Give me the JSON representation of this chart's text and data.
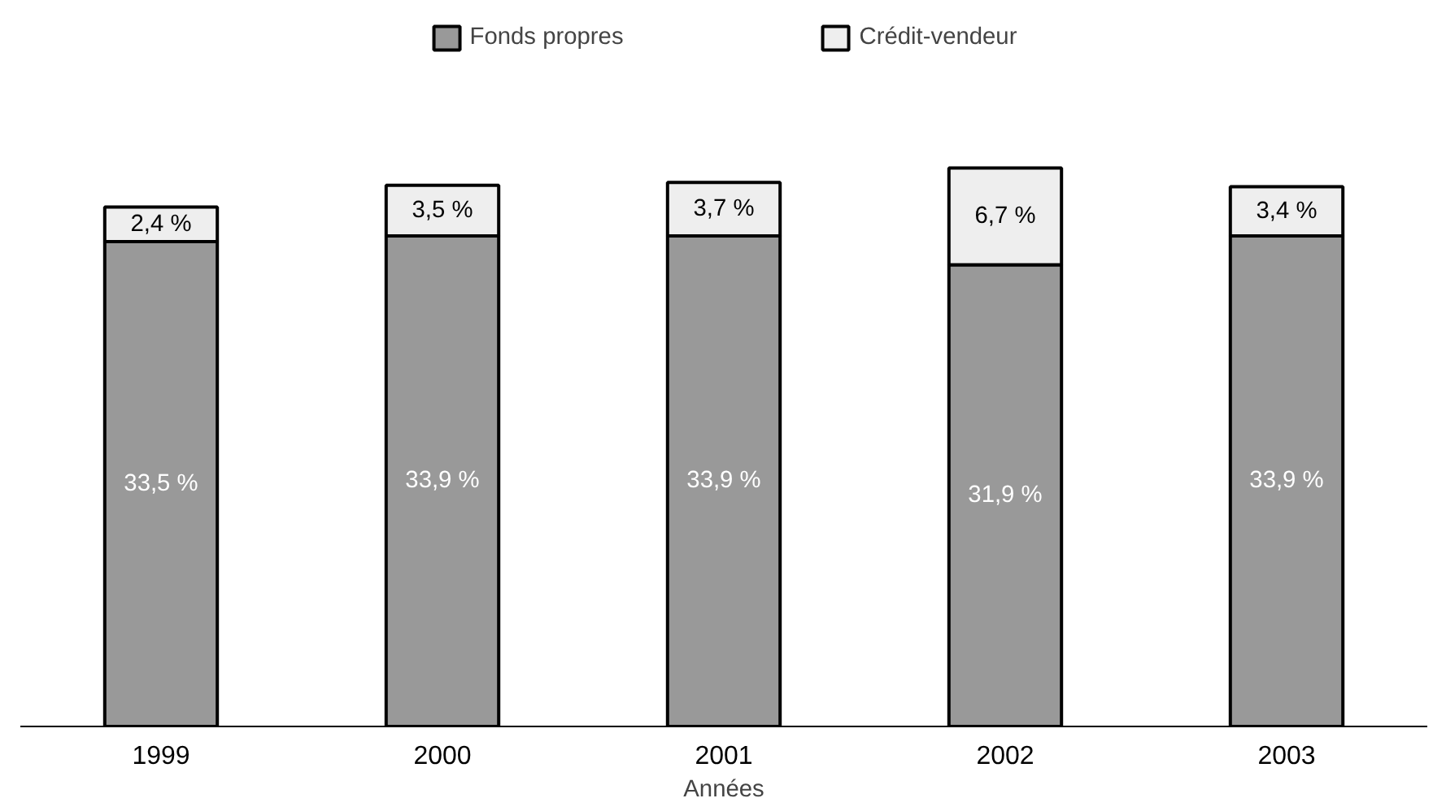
{
  "chart_data": {
    "type": "bar",
    "stacked": true,
    "xlabel": "Années",
    "legend": "top",
    "grid": false,
    "categories": [
      "1999",
      "2000",
      "2001",
      "2002",
      "2003"
    ],
    "series": [
      {
        "name": "Fonds propres",
        "color": "#999999",
        "values": [
          33.5,
          33.9,
          33.9,
          31.9,
          33.9
        ],
        "value_labels": [
          "33,5 %",
          "33,9 %",
          "33,9 %",
          "31,9 %",
          "33,9 %"
        ]
      },
      {
        "name": "Crédit-vendeur",
        "color": "#eeeeee",
        "values": [
          2.4,
          3.5,
          3.7,
          6.7,
          3.4
        ],
        "value_labels": [
          "2,4 %",
          "3,5 %",
          "3,7 %",
          "6,7 %",
          "3,4 %"
        ]
      }
    ]
  }
}
